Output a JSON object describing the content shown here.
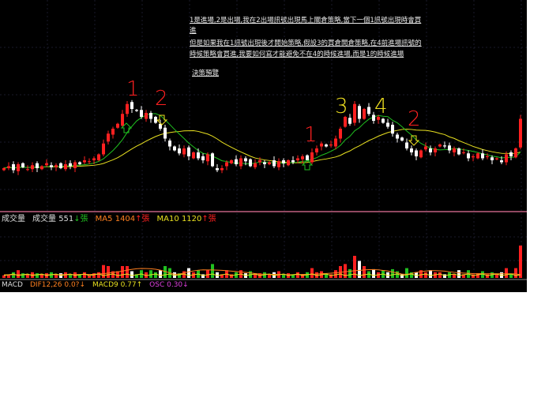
{
  "notes": {
    "line1": "1是進場,2是出場,我在2出場訊號出現馬上關倉策略,當下一個1訊號出現時會買",
    "line2": "進",
    "line3": "但是如果我在1訊號出現後才開始策略,假設3的買倉開倉策略,在4前進場訊號的",
    "line4": "時候策略會買進,我要如何寫才能避免不在4的時候進場,而是1的時候進場",
    "line5": "決策預覽"
  },
  "annotations": {
    "a1": "1",
    "a2": "2",
    "a3": "1",
    "a4": "3",
    "a5": "4",
    "a6": "2"
  },
  "volume_panel": {
    "label": "成交量",
    "vol_name": "成交量",
    "vol_value": "551",
    "vol_arrow": "↓",
    "vol_unit": "張",
    "ma5_name": "MA5",
    "ma5_value": "1404",
    "ma5_arrow": "↑",
    "ma5_unit": "張",
    "ma10_name": "MA10",
    "ma10_value": "1120",
    "ma10_arrow": "↑",
    "ma10_unit": "張"
  },
  "macd_panel": {
    "label": "MACD",
    "dif": "DIF12,26 0.0?↓",
    "macd": "MACD9 0.77↑",
    "osc": "OSC 0.30↓"
  },
  "colors": {
    "up": "#ff2020",
    "down": "#ffffff",
    "ma_short": "#20c020",
    "ma_long": "#e8e020",
    "separator": "#c06080",
    "vol_ma5": "#ff8020",
    "vol_ma10": "#e8e020"
  },
  "prices": [
    20,
    22,
    18,
    24,
    21,
    19,
    23,
    20,
    22,
    25,
    21,
    23,
    20,
    24,
    22,
    26,
    24,
    28,
    27,
    30,
    34,
    45,
    55,
    60,
    65,
    75,
    85,
    80,
    78,
    72,
    76,
    70,
    66,
    60,
    50,
    42,
    38,
    35,
    40,
    32,
    36,
    30,
    28,
    34,
    22,
    18,
    20,
    26,
    28,
    24,
    30,
    27,
    22,
    25,
    28,
    24,
    26,
    22,
    27,
    25,
    28,
    26,
    30,
    32,
    28,
    36,
    40,
    45,
    42,
    44,
    50,
    60,
    72,
    65,
    85,
    70,
    80,
    75,
    68,
    72,
    66,
    62,
    55,
    50,
    48,
    40,
    36,
    32,
    38,
    42,
    36,
    40,
    44,
    42,
    38,
    40,
    34,
    36,
    30,
    32,
    35,
    30,
    32,
    28,
    30,
    26,
    34,
    32,
    40,
    70
  ]
}
